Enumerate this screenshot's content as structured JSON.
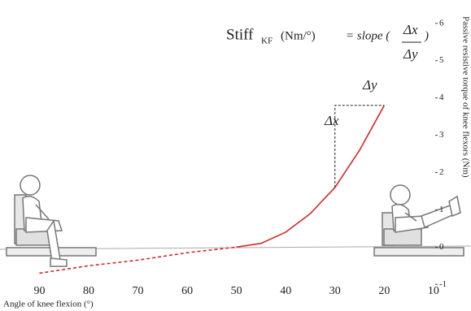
{
  "chart_data": {
    "type": "line",
    "x_label": "Angle of knee flexion (°)",
    "y_label": "Passive resistive torque of knee flexors (Nm)",
    "formula": {
      "main": "Stiff",
      "sub": "KF",
      "unit": "(Nm/°)",
      "eq": "= slope (",
      "num": "Δx",
      "den": "Δy",
      "close": ")"
    },
    "annotations": {
      "dy": "Δy",
      "dx": "Δx"
    },
    "x": [
      90,
      80,
      70,
      60,
      50,
      45,
      40,
      35,
      30,
      25,
      20
    ],
    "series": [
      {
        "color": "#d42a2a",
        "dashed": true,
        "values": [
          -0.7,
          -0.5,
          -0.35,
          -0.15,
          0,
          null,
          null,
          null,
          null,
          null,
          null
        ]
      },
      {
        "color": "#d42a2a",
        "dashed": false,
        "values": [
          null,
          null,
          null,
          null,
          0,
          0.1,
          0.4,
          0.9,
          1.6,
          2.6,
          3.8
        ]
      }
    ],
    "xlim": [
      98,
      8
    ],
    "xticks": [
      90,
      80,
      70,
      60,
      50,
      40,
      30,
      20,
      10
    ],
    "ylim": [
      -1.3,
      6.3
    ],
    "yticks": [
      -1,
      0,
      1,
      2,
      3,
      4,
      5,
      6
    ]
  }
}
